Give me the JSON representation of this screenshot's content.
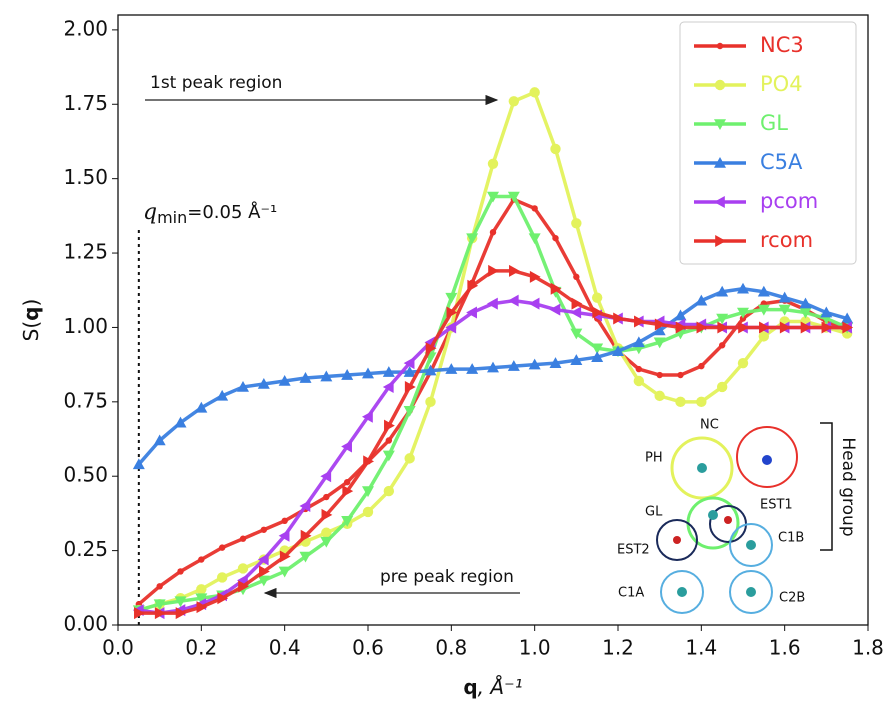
{
  "chart_data": {
    "type": "line",
    "xlabel": {
      "bold": "q",
      "rest": ", Å⁻¹"
    },
    "ylabel": {
      "pre": "S(",
      "bold": "q",
      "post": ")"
    },
    "xlim": [
      0,
      1.8
    ],
    "ylim": [
      0,
      2.05
    ],
    "xticks": [
      {
        "value": 0,
        "label": "0.0"
      },
      0.2,
      0.4,
      0.6,
      0.8,
      {
        "value": 1,
        "label": "1.0"
      },
      1.2,
      1.4,
      1.6,
      1.8
    ],
    "yticks": [
      {
        "value": 0,
        "label": "0.00"
      },
      0.25,
      {
        "value": 0.5,
        "label": "0.50"
      },
      0.75,
      {
        "value": 1,
        "label": "1.00"
      },
      1.25,
      {
        "value": 1.5,
        "label": "1.50"
      },
      1.75,
      {
        "value": 2,
        "label": "2.00"
      }
    ],
    "legend": "upper right",
    "x": [
      0.05,
      0.1,
      0.15,
      0.2,
      0.25,
      0.3,
      0.35,
      0.4,
      0.45,
      0.5,
      0.55,
      0.6,
      0.65,
      0.7,
      0.75,
      0.8,
      0.85,
      0.9,
      0.95,
      1.0,
      1.05,
      1.1,
      1.15,
      1.2,
      1.25,
      1.3,
      1.35,
      1.4,
      1.45,
      1.5,
      1.55,
      1.6,
      1.65,
      1.7,
      1.75
    ],
    "series": [
      {
        "name": "NC3",
        "color": "#e8312b",
        "marker": "dot",
        "values": [
          0.07,
          0.13,
          0.18,
          0.22,
          0.26,
          0.29,
          0.32,
          0.35,
          0.39,
          0.43,
          0.48,
          0.55,
          0.62,
          0.72,
          0.85,
          1.0,
          1.15,
          1.32,
          1.43,
          1.4,
          1.3,
          1.17,
          1.03,
          0.92,
          0.86,
          0.84,
          0.84,
          0.87,
          0.94,
          1.03,
          1.08,
          1.09,
          1.06,
          1.02,
          0.99
        ]
      },
      {
        "name": "PO4",
        "color": "#e3f25c",
        "marker": "circle",
        "values": [
          0.05,
          0.07,
          0.09,
          0.12,
          0.16,
          0.19,
          0.22,
          0.25,
          0.28,
          0.31,
          0.34,
          0.38,
          0.45,
          0.56,
          0.75,
          1.0,
          1.3,
          1.55,
          1.76,
          1.79,
          1.6,
          1.35,
          1.1,
          0.93,
          0.82,
          0.77,
          0.75,
          0.75,
          0.8,
          0.88,
          0.97,
          1.02,
          1.02,
          1.0,
          0.98
        ]
      },
      {
        "name": "GL",
        "color": "#6ef06e",
        "marker": "tri-down",
        "values": [
          0.05,
          0.07,
          0.08,
          0.09,
          0.1,
          0.12,
          0.15,
          0.18,
          0.23,
          0.28,
          0.35,
          0.45,
          0.57,
          0.72,
          0.9,
          1.1,
          1.3,
          1.44,
          1.44,
          1.3,
          1.12,
          0.98,
          0.93,
          0.92,
          0.93,
          0.95,
          0.98,
          1.0,
          1.03,
          1.05,
          1.06,
          1.06,
          1.05,
          1.03,
          1.0
        ]
      },
      {
        "name": "C5A",
        "color": "#3a7fe0",
        "marker": "tri-up",
        "values": [
          0.54,
          0.62,
          0.68,
          0.73,
          0.77,
          0.8,
          0.81,
          0.82,
          0.83,
          0.835,
          0.84,
          0.845,
          0.85,
          0.85,
          0.855,
          0.86,
          0.86,
          0.865,
          0.87,
          0.875,
          0.88,
          0.89,
          0.9,
          0.92,
          0.95,
          0.99,
          1.04,
          1.09,
          1.12,
          1.13,
          1.12,
          1.1,
          1.08,
          1.05,
          1.03
        ]
      },
      {
        "name": "pcom",
        "color": "#a83ff0",
        "marker": "tri-left",
        "values": [
          0.05,
          0.04,
          0.05,
          0.07,
          0.1,
          0.15,
          0.22,
          0.3,
          0.4,
          0.5,
          0.6,
          0.7,
          0.8,
          0.88,
          0.95,
          1.0,
          1.05,
          1.08,
          1.09,
          1.08,
          1.06,
          1.05,
          1.04,
          1.03,
          1.02,
          1.02,
          1.01,
          1.01,
          1.0,
          1.0,
          1.0,
          1.0,
          1.0,
          1.0,
          1.0
        ]
      },
      {
        "name": "rcom",
        "color": "#e8312b",
        "marker": "tri-right",
        "values": [
          0.04,
          0.04,
          0.04,
          0.06,
          0.09,
          0.13,
          0.18,
          0.23,
          0.3,
          0.37,
          0.45,
          0.55,
          0.67,
          0.8,
          0.93,
          1.05,
          1.14,
          1.19,
          1.19,
          1.17,
          1.13,
          1.08,
          1.05,
          1.03,
          1.02,
          1.01,
          1.0,
          1.0,
          1.0,
          1.0,
          1.0,
          1.0,
          1.0,
          1.0,
          1.0
        ]
      }
    ],
    "annotations": {
      "first_peak": "1st peak region",
      "pre_peak": "pre peak region",
      "qmin": {
        "symbol": "q",
        "subscript": "min",
        "text": "=0.05 Å⁻¹",
        "x": 0.05
      }
    },
    "inset_labels": {
      "nc": "NC",
      "ph": "PH",
      "gl": "GL",
      "est1": "EST1",
      "est2": "EST2",
      "c1b": "C1B",
      "c1a": "C1A",
      "c2b": "C2B",
      "head_group": "Head group"
    }
  }
}
